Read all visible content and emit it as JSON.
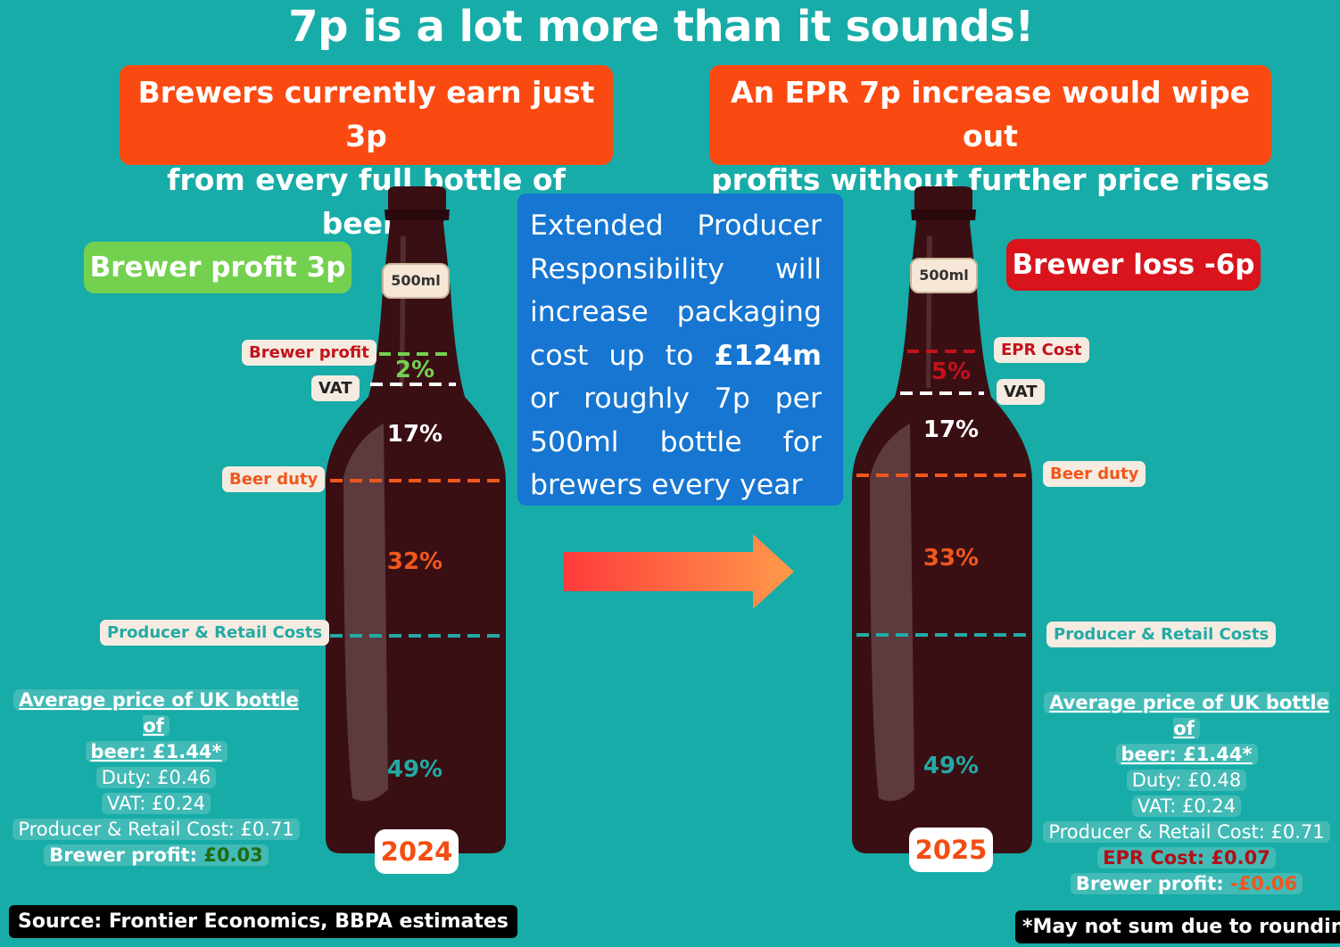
{
  "title": "7p is a lot more than it sounds!",
  "left_banner": {
    "line1": "Brewers currently earn just 3p",
    "line2": "from every full bottle of beer!"
  },
  "right_banner": {
    "line1": "An EPR 7p increase would wipe out",
    "line2": "profits without further price rises"
  },
  "left_pill": {
    "text": "Brewer profit 3p",
    "color": "#74d14f"
  },
  "right_pill": {
    "text": "Brewer loss -6p",
    "color": "#d9141d"
  },
  "epr_box": {
    "lines": [
      "Extended Producer",
      "Responsibility will",
      "increase packaging",
      "cost up to ",
      "or roughly 7p per",
      "500ml bottle for",
      "brewers every year"
    ],
    "highlight": "£124m"
  },
  "bottle_label": "500ml",
  "left_bottle": {
    "year": "2024",
    "labels": {
      "brewer_profit": "Brewer profit",
      "vat": "VAT",
      "beer_duty": "Beer duty",
      "producer_retail": "Producer & Retail Costs"
    },
    "pcts": {
      "profit": "2%",
      "vat": "17%",
      "duty": "32%",
      "producer": "49%"
    }
  },
  "right_bottle": {
    "year": "2025",
    "labels": {
      "epr_cost": "EPR Cost",
      "vat": "VAT",
      "beer_duty": "Beer duty",
      "producer_retail": "Producer & Retail Costs"
    },
    "pcts": {
      "epr": "5%",
      "vat": "17%",
      "duty": "33%",
      "producer": "49%"
    }
  },
  "left_summary": {
    "heading1": "Average price of UK bottle of",
    "heading2": "beer: £1.44*",
    "duty": "Duty: £0.46",
    "vat": "VAT: £0.24",
    "producer": "Producer & Retail Cost: £0.71",
    "profit_label": "Brewer profit: ",
    "profit_value": "£0.03"
  },
  "right_summary": {
    "heading1": "Average price of UK bottle of",
    "heading2": "beer: £1.44*",
    "duty": "Duty: £0.48",
    "vat": "VAT: £0.24",
    "producer": "Producer & Retail Cost: £0.71",
    "epr": "EPR Cost: £0.07",
    "profit_label": "Brewer profit: ",
    "profit_value": "-£0.06"
  },
  "source": "Source: Frontier Economics, BBPA estimates",
  "footnote": "*May not sum due to rounding",
  "colors": {
    "background": "#17aca8",
    "banner": "#fb4a11",
    "epr_box": "#1676d1",
    "profit_line": "#74d14f",
    "epr_line": "#c3121b",
    "duty_line": "#f0571d",
    "producer_line": "#22aaa5",
    "bottle": "#3a0f14"
  }
}
